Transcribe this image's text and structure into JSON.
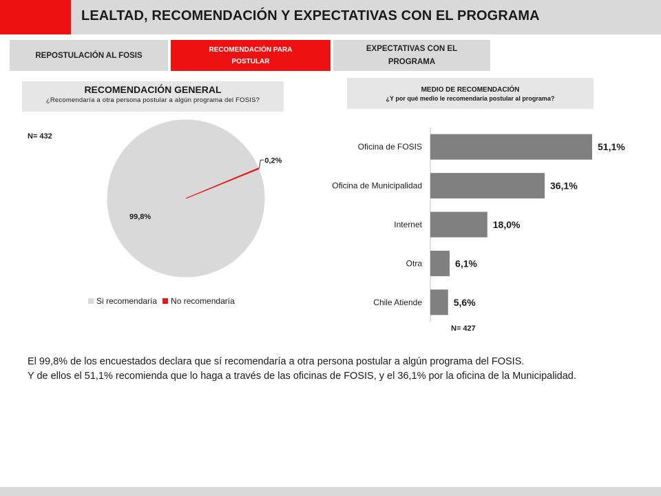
{
  "header": {
    "title": "LEALTAD, RECOMENDACIÓN Y EXPECTATIVAS CON EL PROGRAMA"
  },
  "tabs": [
    {
      "label": "REPOSTULACIÓN AL FOSIS",
      "active": false
    },
    {
      "label": "RECOMENDACIÓN PARA POSTULAR",
      "active": true
    },
    {
      "label": "EXPECTATIVAS CON EL PROGRAMA",
      "active": false
    }
  ],
  "colors": {
    "accent": "#ee1111",
    "panel": "#d9d9d9",
    "bar": "#808080",
    "pie_yes": "#d9d9d9"
  },
  "left_panel": {
    "title": "RECOMENDACIÓN GENERAL",
    "question": "¿Recomendaría a otra persona postular a algún programa del FOSIS?",
    "n": "N= 432"
  },
  "right_panel": {
    "title": "MEDIO DE RECOMENDACIÓN",
    "question": "¿Y por qué medio le recomendaría postular al programa?",
    "n": "N= 427"
  },
  "chart_data": [
    {
      "type": "pie",
      "title": "RECOMENDACIÓN GENERAL",
      "categories": [
        "Si recomendaría",
        "No recomendaría"
      ],
      "values": [
        99.8,
        0.2
      ],
      "labels": [
        "99,8%",
        "0,2%"
      ],
      "colors": [
        "#d9d9d9",
        "#ee1111"
      ],
      "legend": "bottom"
    },
    {
      "type": "bar",
      "orientation": "horizontal",
      "title": "MEDIO DE RECOMENDACIÓN",
      "categories": [
        "Oficina de FOSIS",
        "Oficina de Municipalidad",
        "Internet",
        "Otra",
        "Chile Atiende"
      ],
      "values": [
        51.1,
        36.1,
        18.0,
        6.1,
        5.6
      ],
      "labels": [
        "51,1%",
        "36,1%",
        "18,0%",
        "6,1%",
        "5,6%"
      ],
      "xlim": [
        0,
        51.1
      ],
      "grid": false,
      "color": "#808080"
    }
  ],
  "summary": {
    "line1": "El 99,8% de los encuestados declara que sí recomendaría a otra persona postular a algún programa del FOSIS.",
    "line2": "Y de ellos el 51,1% recomienda que lo haga a través de las oficinas de FOSIS, y el 36,1% por la oficina de la Municipalidad."
  }
}
